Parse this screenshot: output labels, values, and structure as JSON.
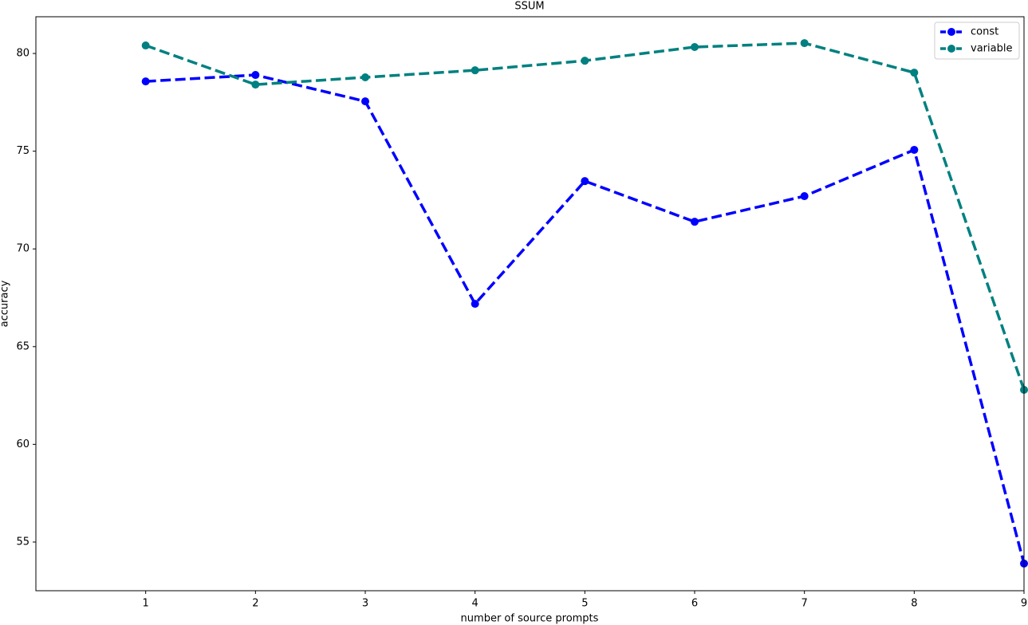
{
  "chart_data": {
    "type": "line",
    "title": "SSUM",
    "x_label": "number of source prompts",
    "y_label": "accuracy",
    "x": [
      1,
      2,
      3,
      4,
      5,
      6,
      7,
      8,
      9
    ],
    "series": [
      {
        "name": "const",
        "color": "#0000ff",
        "values": [
          78.57,
          78.9,
          77.55,
          67.19,
          73.47,
          71.39,
          72.7,
          75.07,
          53.9
        ]
      },
      {
        "name": "variable",
        "color": "#008080",
        "values": [
          80.41,
          78.41,
          78.78,
          79.14,
          79.63,
          80.33,
          80.53,
          79.02,
          62.79
        ]
      }
    ],
    "xlim": [
      0,
      9
    ],
    "ylim": [
      52.51,
      81.88
    ],
    "xticks": [
      1,
      2,
      3,
      4,
      5,
      6,
      7,
      8,
      9
    ],
    "yticks": [
      55,
      60,
      65,
      70,
      75,
      80
    ],
    "legend": "upper right",
    "grid": false
  }
}
